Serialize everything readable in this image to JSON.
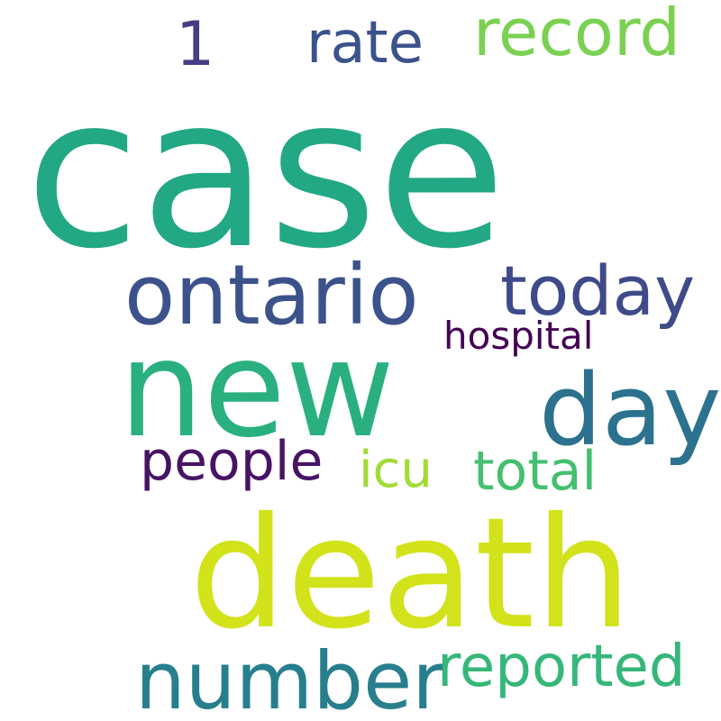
{
  "words": [
    {
      "id": "case",
      "text": "case",
      "color": "#22a884"
    },
    {
      "id": "new",
      "text": "new",
      "color": "#2ab07f"
    },
    {
      "id": "death",
      "text": "death",
      "color": "#d2e21b"
    },
    {
      "id": "ontario",
      "text": "ontario",
      "color": "#3b528b"
    },
    {
      "id": "day",
      "text": "day",
      "color": "#2c728e"
    },
    {
      "id": "number",
      "text": "number",
      "color": "#277f8e"
    },
    {
      "id": "today",
      "text": "today",
      "color": "#3e4a89"
    },
    {
      "id": "record",
      "text": "record",
      "color": "#7ad151"
    },
    {
      "id": "rate",
      "text": "rate",
      "color": "#3b528b"
    },
    {
      "id": "one",
      "text": "1",
      "color": "#433e85"
    },
    {
      "id": "reported",
      "text": "reported",
      "color": "#35b779"
    },
    {
      "id": "people",
      "text": "people",
      "color": "#471365"
    },
    {
      "id": "total",
      "text": "total",
      "color": "#44bf70"
    },
    {
      "id": "icu",
      "text": "icu",
      "color": "#a2da37"
    },
    {
      "id": "hospital",
      "text": "hospital",
      "color": "#440154"
    }
  ]
}
